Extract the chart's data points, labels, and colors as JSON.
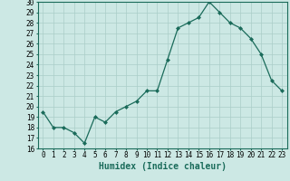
{
  "xlabel": "Humidex (Indice chaleur)",
  "ylabel": "",
  "x": [
    0,
    1,
    2,
    3,
    4,
    5,
    6,
    7,
    8,
    9,
    10,
    11,
    12,
    13,
    14,
    15,
    16,
    17,
    18,
    19,
    20,
    21,
    22,
    23
  ],
  "y": [
    19.5,
    18.0,
    18.0,
    17.5,
    16.5,
    19.0,
    18.5,
    19.5,
    20.0,
    20.5,
    21.5,
    21.5,
    24.5,
    27.5,
    28.0,
    28.5,
    30.0,
    29.0,
    28.0,
    27.5,
    26.5,
    25.0,
    22.5,
    21.5
  ],
  "line_color": "#1a6b5a",
  "marker": "D",
  "marker_size": 2,
  "ylim": [
    16,
    30
  ],
  "yticks": [
    16,
    17,
    18,
    19,
    20,
    21,
    22,
    23,
    24,
    25,
    26,
    27,
    28,
    29,
    30
  ],
  "xticks": [
    0,
    1,
    2,
    3,
    4,
    5,
    6,
    7,
    8,
    9,
    10,
    11,
    12,
    13,
    14,
    15,
    16,
    17,
    18,
    19,
    20,
    21,
    22,
    23
  ],
  "bg_color": "#cce8e4",
  "grid_color": "#aacdc8",
  "tick_fontsize": 5.5,
  "label_fontsize": 7.0
}
